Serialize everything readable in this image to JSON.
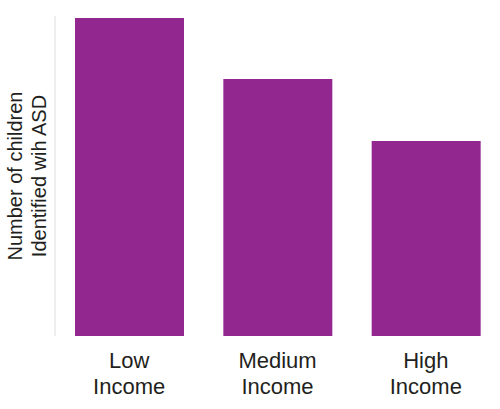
{
  "chart_data": {
    "type": "bar",
    "y_label": "Number of children\nIdentified wih ASD",
    "categories": [
      "Low\nIncome",
      "Medium\nIncome",
      "High\nIncome"
    ],
    "values": [
      318,
      257,
      195
    ],
    "color": "#92278f",
    "ylim": [
      0,
      320
    ],
    "yticks": [],
    "grid": false,
    "tick_labels": "x"
  }
}
